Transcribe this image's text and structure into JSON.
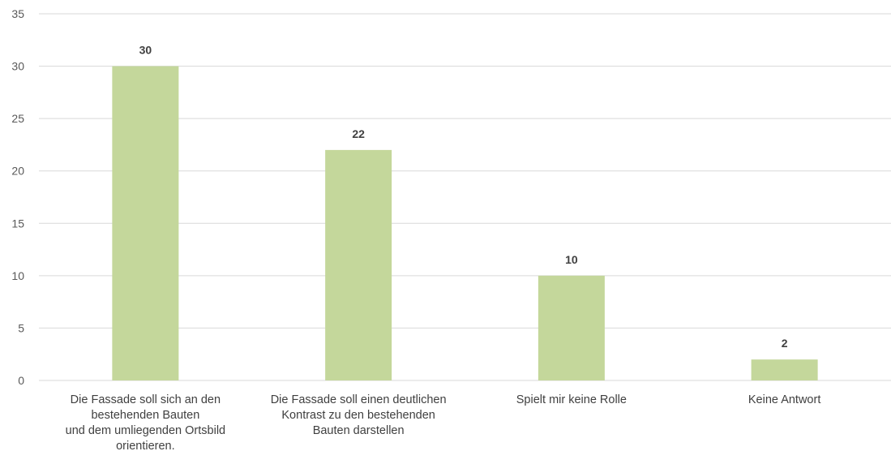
{
  "colors": {
    "bar": "#c4d79b",
    "grid": "#d9d9d9",
    "text": "#595959"
  },
  "chart_data": {
    "type": "bar",
    "categories": [
      "Die Fassade soll sich an den\nbestehenden Bauten\nund dem umliegenden Ortsbild\norientieren.",
      "Die Fassade soll einen deutlichen\nKontrast zu den bestehenden\nBauten darstellen",
      "Spielt mir keine Rolle",
      "Keine Antwort"
    ],
    "values": [
      30,
      22,
      10,
      2
    ],
    "title": "",
    "xlabel": "",
    "ylabel": "",
    "ylim": [
      0,
      35
    ],
    "yticks": [
      0,
      5,
      10,
      15,
      20,
      25,
      30,
      35
    ],
    "grid": true,
    "data_labels": true,
    "legend": "none"
  }
}
